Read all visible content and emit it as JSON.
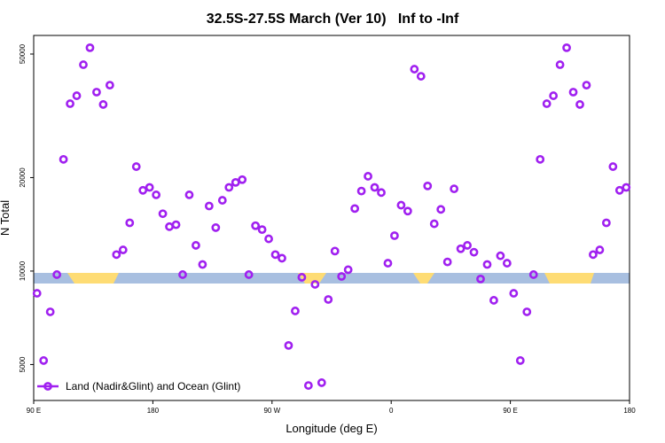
{
  "chart_data": {
    "type": "scatter",
    "title": "32.5S-27.5S March (Ver 10)   Inf to -Inf",
    "xlabel": "Longitude (deg E)",
    "ylabel": "N Total",
    "log_y": true,
    "legend_position": "bottom-left",
    "xlim": [
      90,
      540
    ],
    "xticks": [
      {
        "value": 90,
        "label": "90 E"
      },
      {
        "value": 180,
        "label": "180"
      },
      {
        "value": 270,
        "label": "90 W"
      },
      {
        "value": 360,
        "label": "0"
      },
      {
        "value": 450,
        "label": "90 E"
      },
      {
        "value": 540,
        "label": "180"
      }
    ],
    "ylim": [
      3830,
      57400
    ],
    "yticks": [
      5000,
      10000,
      20000,
      50000
    ],
    "series": [
      {
        "name": "Land (Nadir&Glint) and Ocean (Glint)",
        "color": "#a020f0",
        "x": [
          92.5,
          97.5,
          102.5,
          107.5,
          112.5,
          117.5,
          122.5,
          127.5,
          132.5,
          137.5,
          142.5,
          147.5,
          152.5,
          157.5,
          162.5,
          167.5,
          172.5,
          177.5,
          182.5,
          187.5,
          192.5,
          197.5,
          202.5,
          207.5,
          212.5,
          217.5,
          222.5,
          227.5,
          232.5,
          237.5,
          242.5,
          247.5,
          252.5,
          257.5,
          262.5,
          267.5,
          272.5,
          277.5,
          282.5,
          287.5,
          292.5,
          297.5,
          302.5,
          307.5,
          312.5,
          317.5,
          322.5,
          327.5,
          332.5,
          337.5,
          342.5,
          347.5,
          352.5,
          357.5,
          362.5,
          367.5,
          372.5,
          377.5,
          382.5,
          387.5,
          392.5,
          397.5,
          402.5,
          407.5,
          412.5,
          417.5,
          422.5,
          427.5,
          432.5,
          437.5,
          442.5,
          447.5,
          452.5,
          457.5,
          462.5,
          467.5,
          472.5,
          477.5,
          482.5,
          487.5,
          492.5,
          497.5,
          502.5,
          507.5,
          512.5,
          517.5,
          522.5,
          527.5,
          532.5,
          537.5
        ],
        "values": [
          8480,
          5150,
          7390,
          9740,
          22900,
          34600,
          36700,
          46200,
          52400,
          37700,
          34400,
          39700,
          11300,
          11700,
          14300,
          21700,
          18200,
          18600,
          17600,
          15300,
          13900,
          14100,
          9740,
          17600,
          12100,
          10500,
          16200,
          13800,
          16900,
          18600,
          19300,
          19700,
          9740,
          14000,
          13600,
          12700,
          11300,
          11000,
          5760,
          7440,
          9550,
          4280,
          9060,
          4370,
          8100,
          11600,
          9610,
          10100,
          15900,
          18100,
          20200,
          18600,
          17900,
          10600,
          13000,
          16300,
          15600,
          44700,
          42400,
          18800,
          14200,
          15800,
          10700,
          18400,
          11800,
          12100,
          11500,
          9430,
          10500,
          8050,
          11200,
          10600,
          8480,
          5150,
          7390,
          9740,
          22900,
          34600,
          36700,
          46200,
          52400,
          37700,
          34400,
          39700,
          11300,
          11700,
          14300,
          21700,
          18200,
          18600
        ]
      }
    ]
  }
}
